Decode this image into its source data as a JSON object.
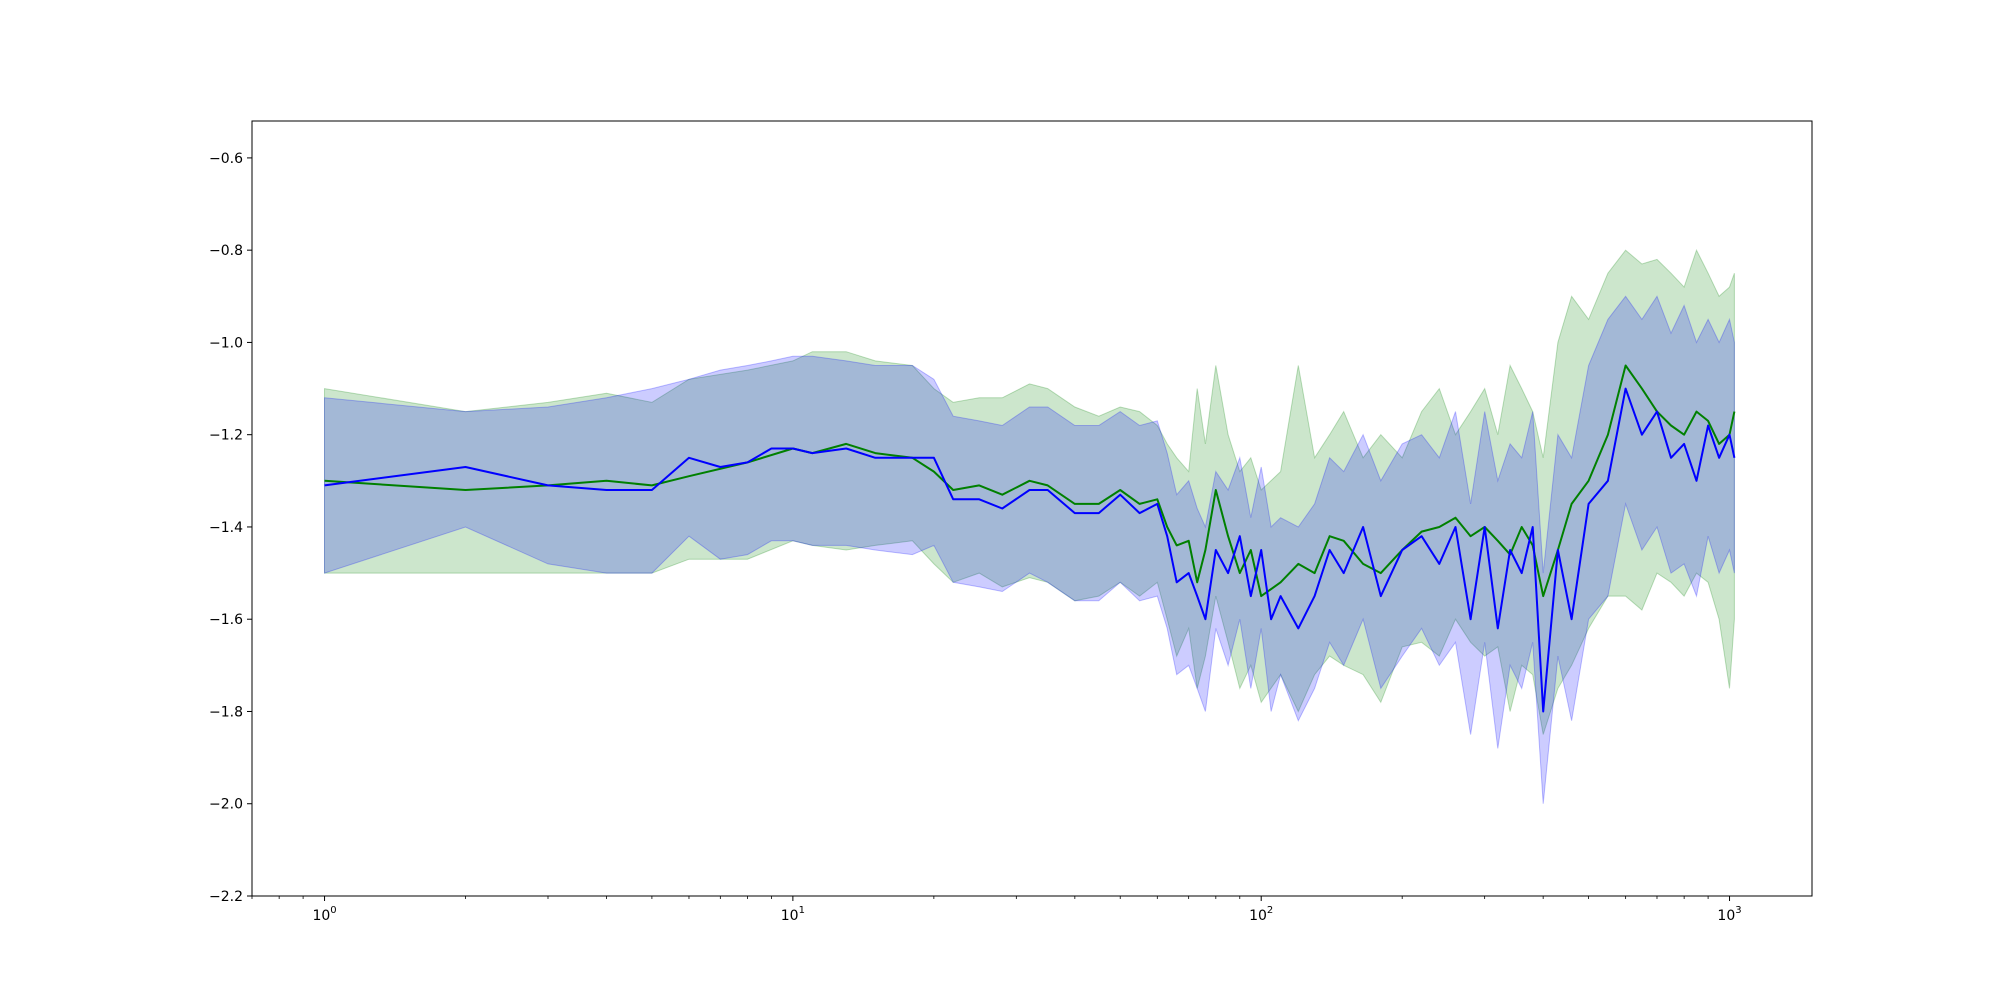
{
  "chart_data": {
    "type": "line",
    "title": "",
    "xlabel": "",
    "ylabel": "",
    "x_scale": "log",
    "xlim": [
      0.7,
      1500
    ],
    "ylim": [
      -2.2,
      -0.52
    ],
    "grid": false,
    "legend": "none",
    "x_ticks": [
      {
        "base": "10",
        "exp": "0",
        "value": 1
      },
      {
        "base": "10",
        "exp": "1",
        "value": 10
      },
      {
        "base": "10",
        "exp": "2",
        "value": 100
      },
      {
        "base": "10",
        "exp": "3",
        "value": 1000
      }
    ],
    "y_ticks": [
      {
        "label": "−2.2",
        "value": -2.2
      },
      {
        "label": "−2.0",
        "value": -2.0
      },
      {
        "label": "−1.8",
        "value": -1.8
      },
      {
        "label": "−1.6",
        "value": -1.6
      },
      {
        "label": "−1.4",
        "value": -1.4
      },
      {
        "label": "−1.2",
        "value": -1.2
      },
      {
        "label": "−1.0",
        "value": -1.0
      },
      {
        "label": "−0.8",
        "value": -0.8
      },
      {
        "label": "−0.6",
        "value": -0.6
      }
    ],
    "series": [
      {
        "color": "#008000",
        "band_color": "#008000",
        "band_opacity": 0.2,
        "x": [
          1,
          2,
          3,
          4,
          5,
          6,
          8,
          10,
          11,
          13,
          15,
          18,
          20,
          22,
          25,
          28,
          32,
          35,
          40,
          45,
          50,
          55,
          60,
          63,
          66,
          70,
          73,
          76,
          80,
          85,
          90,
          95,
          100,
          110,
          120,
          130,
          140,
          150,
          165,
          180,
          200,
          220,
          240,
          260,
          280,
          300,
          320,
          340,
          360,
          380,
          400,
          430,
          460,
          500,
          550,
          600,
          650,
          700,
          750,
          800,
          850,
          900,
          950,
          1000,
          1024
        ],
        "y": [
          -1.3,
          -1.32,
          -1.31,
          -1.3,
          -1.31,
          -1.29,
          -1.26,
          -1.23,
          -1.24,
          -1.22,
          -1.24,
          -1.25,
          -1.28,
          -1.32,
          -1.31,
          -1.33,
          -1.3,
          -1.31,
          -1.35,
          -1.35,
          -1.32,
          -1.35,
          -1.34,
          -1.4,
          -1.44,
          -1.43,
          -1.52,
          -1.45,
          -1.32,
          -1.42,
          -1.5,
          -1.45,
          -1.55,
          -1.52,
          -1.48,
          -1.5,
          -1.42,
          -1.43,
          -1.48,
          -1.5,
          -1.45,
          -1.41,
          -1.4,
          -1.38,
          -1.42,
          -1.4,
          -1.43,
          -1.46,
          -1.4,
          -1.44,
          -1.55,
          -1.45,
          -1.35,
          -1.3,
          -1.2,
          -1.05,
          -1.1,
          -1.15,
          -1.18,
          -1.2,
          -1.15,
          -1.17,
          -1.22,
          -1.2,
          -1.15
        ],
        "upper": [
          -1.1,
          -1.15,
          -1.13,
          -1.11,
          -1.13,
          -1.08,
          -1.06,
          -1.04,
          -1.02,
          -1.02,
          -1.04,
          -1.05,
          -1.1,
          -1.13,
          -1.12,
          -1.12,
          -1.09,
          -1.1,
          -1.14,
          -1.16,
          -1.14,
          -1.15,
          -1.18,
          -1.22,
          -1.25,
          -1.28,
          -1.1,
          -1.22,
          -1.05,
          -1.2,
          -1.28,
          -1.25,
          -1.32,
          -1.28,
          -1.05,
          -1.25,
          -1.2,
          -1.15,
          -1.25,
          -1.2,
          -1.25,
          -1.15,
          -1.1,
          -1.2,
          -1.15,
          -1.1,
          -1.2,
          -1.05,
          -1.1,
          -1.15,
          -1.25,
          -1.0,
          -0.9,
          -0.95,
          -0.85,
          -0.8,
          -0.83,
          -0.82,
          -0.85,
          -0.88,
          -0.8,
          -0.85,
          -0.9,
          -0.88,
          -0.85
        ],
        "lower": [
          -1.5,
          -1.5,
          -1.5,
          -1.5,
          -1.5,
          -1.47,
          -1.47,
          -1.43,
          -1.44,
          -1.45,
          -1.44,
          -1.43,
          -1.48,
          -1.52,
          -1.5,
          -1.53,
          -1.51,
          -1.52,
          -1.56,
          -1.55,
          -1.52,
          -1.55,
          -1.52,
          -1.6,
          -1.68,
          -1.62,
          -1.75,
          -1.68,
          -1.55,
          -1.65,
          -1.75,
          -1.7,
          -1.78,
          -1.72,
          -1.8,
          -1.72,
          -1.68,
          -1.7,
          -1.72,
          -1.78,
          -1.66,
          -1.65,
          -1.68,
          -1.6,
          -1.65,
          -1.68,
          -1.66,
          -1.8,
          -1.7,
          -1.72,
          -1.85,
          -1.75,
          -1.7,
          -1.62,
          -1.55,
          -1.55,
          -1.58,
          -1.5,
          -1.52,
          -1.55,
          -1.5,
          -1.52,
          -1.6,
          -1.75,
          -1.6
        ]
      },
      {
        "color": "#0000ff",
        "band_color": "#0000ff",
        "band_opacity": 0.2,
        "x": [
          1,
          2,
          3,
          4,
          5,
          6,
          7,
          8,
          9,
          10,
          11,
          13,
          15,
          18,
          20,
          22,
          25,
          28,
          32,
          35,
          40,
          45,
          50,
          55,
          60,
          63,
          66,
          70,
          73,
          76,
          80,
          85,
          90,
          95,
          100,
          105,
          110,
          120,
          130,
          140,
          150,
          165,
          180,
          200,
          220,
          240,
          260,
          280,
          300,
          320,
          340,
          360,
          380,
          400,
          430,
          460,
          500,
          550,
          600,
          650,
          700,
          750,
          800,
          850,
          900,
          950,
          1000,
          1024
        ],
        "y": [
          -1.31,
          -1.27,
          -1.31,
          -1.32,
          -1.32,
          -1.25,
          -1.27,
          -1.26,
          -1.23,
          -1.23,
          -1.24,
          -1.23,
          -1.25,
          -1.25,
          -1.25,
          -1.34,
          -1.34,
          -1.36,
          -1.32,
          -1.32,
          -1.37,
          -1.37,
          -1.33,
          -1.37,
          -1.35,
          -1.42,
          -1.52,
          -1.5,
          -1.55,
          -1.6,
          -1.45,
          -1.5,
          -1.42,
          -1.55,
          -1.45,
          -1.6,
          -1.55,
          -1.62,
          -1.55,
          -1.45,
          -1.5,
          -1.4,
          -1.55,
          -1.45,
          -1.42,
          -1.48,
          -1.4,
          -1.6,
          -1.4,
          -1.62,
          -1.45,
          -1.5,
          -1.4,
          -1.8,
          -1.45,
          -1.6,
          -1.35,
          -1.3,
          -1.1,
          -1.2,
          -1.15,
          -1.25,
          -1.22,
          -1.3,
          -1.18,
          -1.25,
          -1.2,
          -1.25
        ],
        "upper": [
          -1.12,
          -1.15,
          -1.14,
          -1.12,
          -1.1,
          -1.08,
          -1.06,
          -1.05,
          -1.04,
          -1.03,
          -1.03,
          -1.04,
          -1.05,
          -1.05,
          -1.08,
          -1.16,
          -1.17,
          -1.18,
          -1.14,
          -1.14,
          -1.18,
          -1.18,
          -1.15,
          -1.18,
          -1.17,
          -1.24,
          -1.33,
          -1.3,
          -1.36,
          -1.4,
          -1.28,
          -1.32,
          -1.25,
          -1.38,
          -1.27,
          -1.4,
          -1.38,
          -1.4,
          -1.35,
          -1.25,
          -1.28,
          -1.2,
          -1.3,
          -1.22,
          -1.2,
          -1.25,
          -1.15,
          -1.35,
          -1.15,
          -1.3,
          -1.22,
          -1.25,
          -1.15,
          -1.5,
          -1.2,
          -1.25,
          -1.05,
          -0.95,
          -0.9,
          -0.95,
          -0.9,
          -0.98,
          -0.92,
          -1.0,
          -0.95,
          -1.0,
          -0.95,
          -1.0
        ],
        "lower": [
          -1.5,
          -1.4,
          -1.48,
          -1.5,
          -1.5,
          -1.42,
          -1.47,
          -1.46,
          -1.43,
          -1.43,
          -1.44,
          -1.44,
          -1.45,
          -1.46,
          -1.44,
          -1.52,
          -1.53,
          -1.54,
          -1.5,
          -1.52,
          -1.56,
          -1.56,
          -1.52,
          -1.56,
          -1.55,
          -1.62,
          -1.72,
          -1.7,
          -1.75,
          -1.8,
          -1.62,
          -1.7,
          -1.6,
          -1.75,
          -1.62,
          -1.8,
          -1.72,
          -1.82,
          -1.75,
          -1.65,
          -1.7,
          -1.6,
          -1.75,
          -1.68,
          -1.62,
          -1.7,
          -1.65,
          -1.85,
          -1.65,
          -1.88,
          -1.7,
          -1.75,
          -1.65,
          -2.0,
          -1.68,
          -1.82,
          -1.6,
          -1.55,
          -1.35,
          -1.45,
          -1.4,
          -1.5,
          -1.48,
          -1.55,
          -1.42,
          -1.5,
          -1.45,
          -1.5
        ]
      }
    ]
  }
}
